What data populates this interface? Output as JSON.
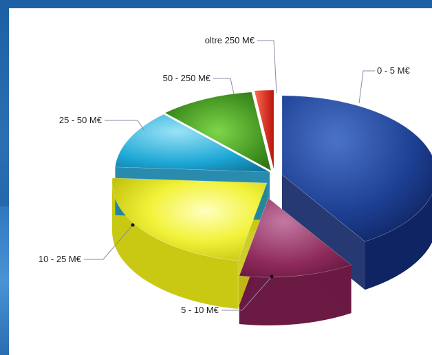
{
  "chart_data": {
    "type": "pie",
    "style": "3d-exploded",
    "slices": [
      {
        "label": "0 - 5 M€",
        "value": 41.0,
        "color": "#1a3a8f"
      },
      {
        "label": "5 - 10 M€",
        "value": 12.0,
        "color": "#8e2a5a"
      },
      {
        "label": "10 - 25 M€",
        "value": 23.0,
        "color": "#e6e61e"
      },
      {
        "label": "25 - 50 M€",
        "value": 12.0,
        "color": "#1ea8d6"
      },
      {
        "label": "50 - 250 M€",
        "value": 10.0,
        "color": "#3f8f1e"
      },
      {
        "label": "oltre 250 M€",
        "value": 2.0,
        "color": "#e02418"
      }
    ]
  }
}
